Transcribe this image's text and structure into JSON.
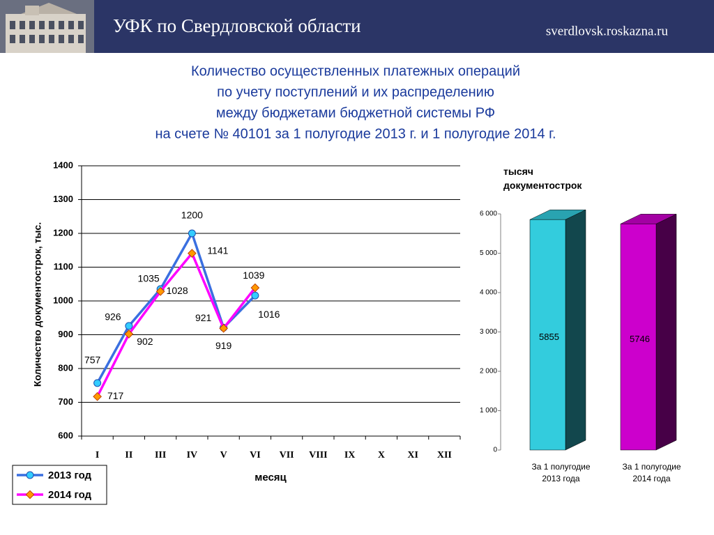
{
  "header": {
    "title": "УФК по Свердловской области",
    "site": "sverdlovsk.roskazna.ru"
  },
  "slide_title": [
    "Количество осуществленных платежных операций",
    "по учету поступлений и их распределению",
    "между бюджетами бюджетной системы РФ",
    "на счете № 40101 за 1 полугодие 2013 г. и 1 полугодие 2014 г."
  ],
  "chart_data": [
    {
      "type": "line",
      "y_label": "Количество документострок, тыс.",
      "x_label": "месяц",
      "categories": [
        "I",
        "II",
        "III",
        "IV",
        "V",
        "VI",
        "VII",
        "VIII",
        "IX",
        "X",
        "XI",
        "XII"
      ],
      "series": [
        {
          "name": "2013 год",
          "color": "#3a6fe0",
          "marker_color": "#33ccff",
          "marker": "circle",
          "values": [
            757,
            926,
            1035,
            1200,
            921,
            1016,
            null,
            null,
            null,
            null,
            null,
            null
          ]
        },
        {
          "name": "2014 год",
          "color": "#ff00ff",
          "marker_color": "#ff9900",
          "marker": "diamond",
          "values": [
            717,
            902,
            1028,
            1141,
            919,
            1039,
            null,
            null,
            null,
            null,
            null,
            null
          ]
        }
      ],
      "ylim": [
        600,
        1400
      ],
      "yticks": [
        600,
        700,
        800,
        900,
        1000,
        1100,
        1200,
        1300,
        1400
      ],
      "grid": true,
      "legend": "bottom-left"
    },
    {
      "type": "bar3d",
      "unit_label": "тысяч документострок",
      "categories": [
        "За 1 полугодие 2013 года",
        "За 1 полугодие 2014 года"
      ],
      "values": [
        5855,
        5746
      ],
      "colors": [
        "#33ccdd",
        "#cc00cc"
      ],
      "ylim": [
        0,
        6000
      ],
      "yticks": [
        0,
        {
          "value": 1000,
          "label": "1 000"
        },
        {
          "value": 2000,
          "label": "2 000"
        },
        {
          "value": 3000,
          "label": "3 000"
        },
        {
          "value": 4000,
          "label": "4 000"
        },
        {
          "value": 5000,
          "label": "5 000"
        },
        {
          "value": 6000,
          "label": "6 000"
        }
      ]
    }
  ]
}
